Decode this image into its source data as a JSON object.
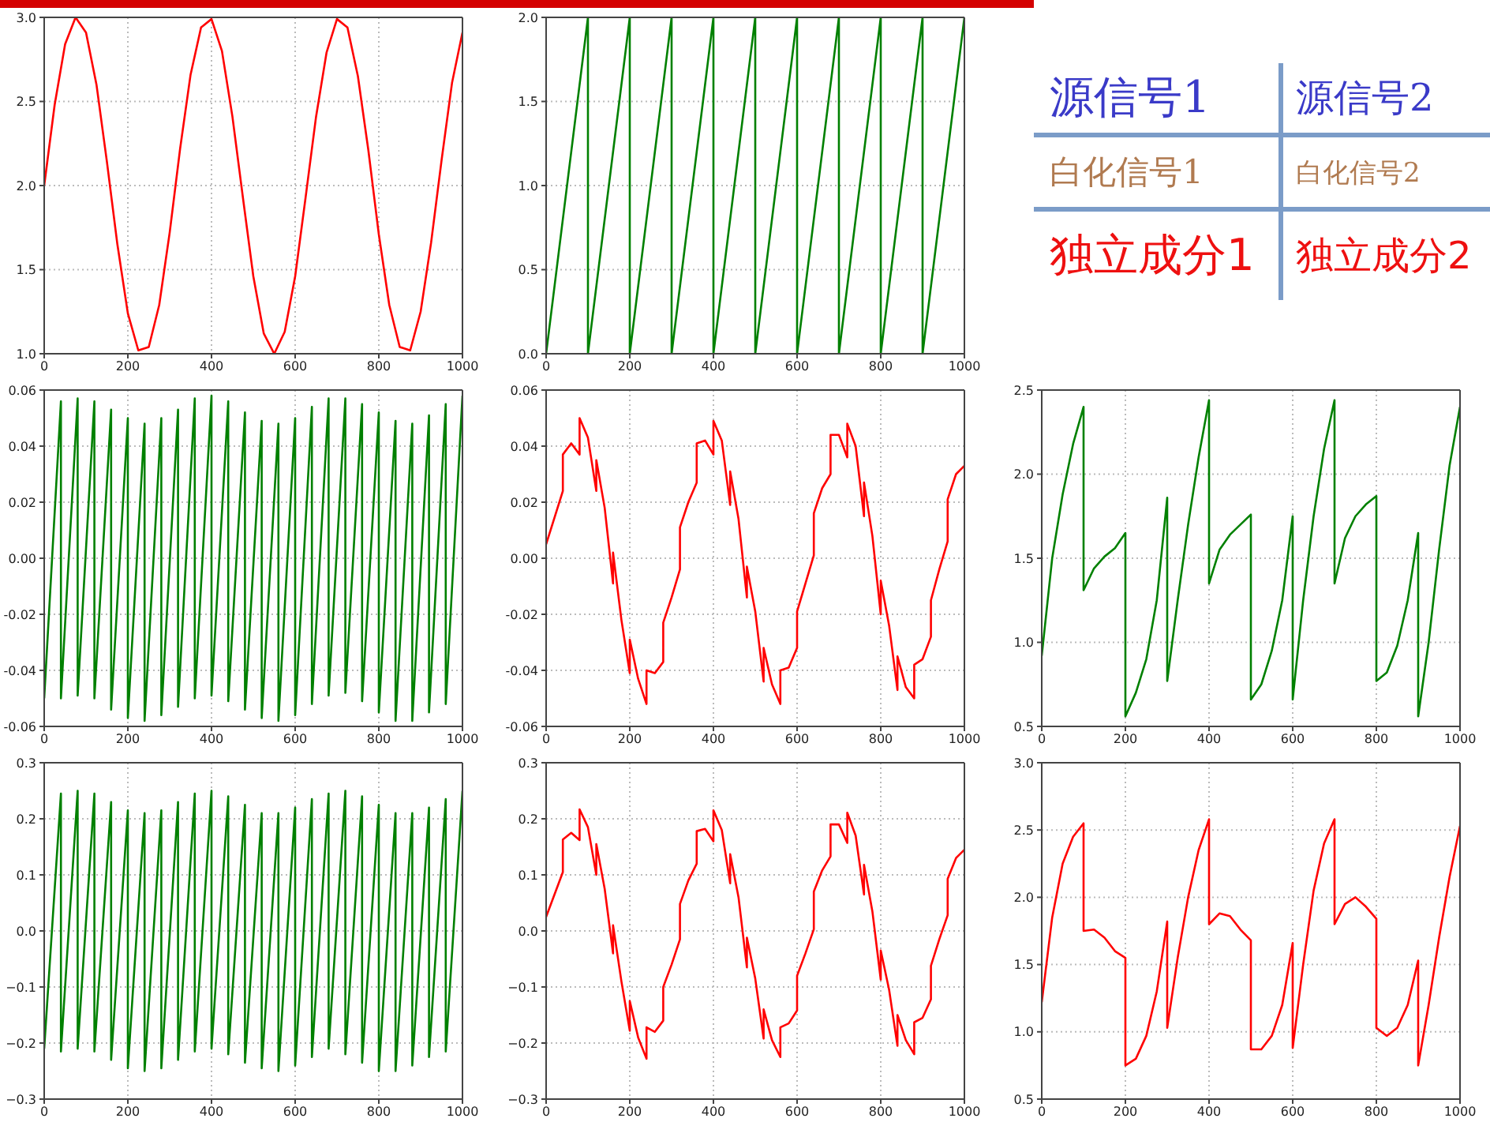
{
  "chart_data": [
    {
      "type": "line",
      "x": [
        0,
        25,
        50,
        75,
        100,
        125,
        150,
        175,
        200,
        225,
        250,
        275,
        300,
        325,
        350,
        375,
        400,
        425,
        450,
        475,
        500,
        525,
        550,
        575,
        600,
        625,
        650,
        675,
        700,
        725,
        750,
        775,
        800,
        825,
        850,
        875,
        900,
        925,
        950,
        975,
        1000
      ],
      "series": [
        {
          "color": "#ff0000",
          "values": [
            2.0,
            2.48,
            2.84,
            3.0,
            2.91,
            2.6,
            2.14,
            1.65,
            1.24,
            1.02,
            1.04,
            1.29,
            1.72,
            2.22,
            2.66,
            2.94,
            2.99,
            2.8,
            2.41,
            1.93,
            1.46,
            1.12,
            1.0,
            1.13,
            1.46,
            1.93,
            2.41,
            2.79,
            2.99,
            2.94,
            2.65,
            2.21,
            1.71,
            1.29,
            1.04,
            1.02,
            1.25,
            1.66,
            2.15,
            2.61,
            2.91
          ]
        }
      ],
      "xlim": [
        0,
        1000
      ],
      "xticks": [
        0,
        200,
        400,
        600,
        800,
        1000
      ],
      "ylim": [
        1,
        3
      ],
      "yticks": [
        {
          "value": 1,
          "label": "1.0"
        },
        {
          "value": 1.5,
          "label": "1.5"
        },
        {
          "value": 2,
          "label": "2.0"
        },
        {
          "value": 2.5,
          "label": "2.5"
        },
        {
          "value": 3,
          "label": "3.0"
        }
      ],
      "grid": true
    },
    {
      "type": "line",
      "x": [
        0,
        100,
        100,
        200,
        200,
        300,
        300,
        400,
        400,
        500,
        500,
        600,
        600,
        700,
        700,
        800,
        800,
        900,
        900,
        1000
      ],
      "series": [
        {
          "color": "#008000",
          "values": [
            0,
            2,
            0,
            2,
            0,
            2,
            0,
            2,
            0,
            2,
            0,
            2,
            0,
            2,
            0,
            2,
            0,
            2,
            0,
            2
          ]
        }
      ],
      "xlim": [
        0,
        1000
      ],
      "xticks": [
        0,
        200,
        400,
        600,
        800,
        1000
      ],
      "ylim": [
        0,
        2
      ],
      "yticks": [
        {
          "value": 0,
          "label": "0.0"
        },
        {
          "value": 0.5,
          "label": "0.5"
        },
        {
          "value": 1,
          "label": "1.0"
        },
        {
          "value": 1.5,
          "label": "1.5"
        },
        {
          "value": 2,
          "label": "2.0"
        }
      ],
      "grid": true
    },
    {
      "type": "other",
      "annotations": [
        "源信号1",
        "源信号2",
        "白化信号1",
        "白化信号2",
        "独立成分1",
        "独立成分2"
      ]
    },
    {
      "type": "line",
      "x": [
        0,
        40,
        40,
        80,
        80,
        120,
        120,
        160,
        160,
        200,
        200,
        240,
        240,
        280,
        280,
        320,
        320,
        360,
        360,
        400,
        400,
        440,
        440,
        480,
        480,
        520,
        520,
        560,
        560,
        600,
        600,
        640,
        640,
        680,
        680,
        720,
        720,
        760,
        760,
        800,
        800,
        840,
        840,
        880,
        880,
        920,
        920,
        960,
        960,
        1000
      ],
      "series": [
        {
          "color": "#008000",
          "values": [
            -0.05,
            0.056,
            -0.05,
            0.057,
            -0.049,
            0.056,
            -0.05,
            0.053,
            -0.054,
            0.05,
            -0.057,
            0.048,
            -0.058,
            0.05,
            -0.056,
            0.053,
            -0.053,
            0.057,
            -0.05,
            0.058,
            -0.049,
            0.056,
            -0.051,
            0.052,
            -0.054,
            0.049,
            -0.057,
            0.048,
            -0.058,
            0.05,
            -0.056,
            0.054,
            -0.052,
            0.057,
            -0.049,
            0.057,
            -0.048,
            0.055,
            -0.051,
            0.052,
            -0.055,
            0.049,
            -0.058,
            0.048,
            -0.058,
            0.051,
            -0.055,
            0.055,
            -0.052,
            0.058
          ]
        }
      ],
      "xlim": [
        0,
        1000
      ],
      "xticks": [
        0,
        200,
        400,
        600,
        800,
        1000
      ],
      "ylim": [
        -0.06,
        0.06
      ],
      "yticks": [
        {
          "value": -0.06,
          "label": "-0.06"
        },
        {
          "value": -0.04,
          "label": "-0.04"
        },
        {
          "value": -0.02,
          "label": "-0.02"
        },
        {
          "value": 0,
          "label": "0.00"
        },
        {
          "value": 0.02,
          "label": "0.02"
        },
        {
          "value": 0.04,
          "label": "0.04"
        },
        {
          "value": 0.06,
          "label": "0.06"
        }
      ],
      "grid": true
    },
    {
      "type": "line",
      "x": [
        0,
        40,
        40,
        60,
        80,
        80,
        100,
        120,
        120,
        140,
        160,
        160,
        180,
        200,
        200,
        220,
        240,
        240,
        260,
        280,
        280,
        300,
        320,
        320,
        340,
        360,
        360,
        380,
        400,
        400,
        420,
        440,
        440,
        460,
        480,
        480,
        500,
        520,
        520,
        540,
        560,
        560,
        580,
        600,
        600,
        620,
        640,
        640,
        660,
        680,
        680,
        700,
        720,
        720,
        740,
        760,
        760,
        780,
        800,
        800,
        820,
        840,
        840,
        860,
        880,
        880,
        900,
        920,
        920,
        940,
        960,
        960,
        980,
        1000
      ],
      "series": [
        {
          "color": "#ff0000",
          "values": [
            0.005,
            0.024,
            0.037,
            0.041,
            0.037,
            0.05,
            0.043,
            0.024,
            0.035,
            0.018,
            -0.009,
            0.002,
            -0.022,
            -0.041,
            -0.029,
            -0.043,
            -0.052,
            -0.04,
            -0.041,
            -0.037,
            -0.023,
            -0.014,
            -0.004,
            0.011,
            0.02,
            0.027,
            0.041,
            0.042,
            0.037,
            0.049,
            0.042,
            0.019,
            0.031,
            0.014,
            -0.014,
            -0.003,
            -0.019,
            -0.044,
            -0.032,
            -0.045,
            -0.052,
            -0.04,
            -0.039,
            -0.032,
            -0.019,
            -0.009,
            0.001,
            0.016,
            0.025,
            0.03,
            0.044,
            0.044,
            0.036,
            0.048,
            0.04,
            0.015,
            0.027,
            0.008,
            -0.02,
            -0.008,
            -0.024,
            -0.047,
            -0.035,
            -0.046,
            -0.05,
            -0.038,
            -0.036,
            -0.028,
            -0.015,
            -0.004,
            0.006,
            0.021,
            0.03,
            0.033
          ]
        }
      ],
      "xlim": [
        0,
        1000
      ],
      "xticks": [
        0,
        200,
        400,
        600,
        800,
        1000
      ],
      "ylim": [
        -0.06,
        0.06
      ],
      "yticks": [
        {
          "value": -0.06,
          "label": "-0.06"
        },
        {
          "value": -0.04,
          "label": "-0.04"
        },
        {
          "value": -0.02,
          "label": "-0.02"
        },
        {
          "value": 0,
          "label": "0.00"
        },
        {
          "value": 0.02,
          "label": "0.02"
        },
        {
          "value": 0.04,
          "label": "0.04"
        },
        {
          "value": 0.06,
          "label": "0.06"
        }
      ],
      "grid": true
    },
    {
      "type": "line",
      "x": [
        0,
        25,
        50,
        75,
        100,
        100,
        125,
        150,
        175,
        200,
        200,
        225,
        250,
        275,
        300,
        300,
        325,
        350,
        375,
        400,
        400,
        425,
        450,
        475,
        500,
        500,
        525,
        550,
        575,
        600,
        600,
        625,
        650,
        675,
        700,
        700,
        725,
        750,
        775,
        800,
        800,
        825,
        850,
        875,
        900,
        900,
        925,
        950,
        975,
        1000
      ],
      "series": [
        {
          "color": "#008000",
          "values": [
            0.92,
            1.5,
            1.88,
            2.18,
            2.4,
            1.31,
            1.44,
            1.51,
            1.56,
            1.65,
            0.56,
            0.7,
            0.9,
            1.25,
            1.86,
            0.77,
            1.25,
            1.7,
            2.1,
            2.44,
            1.35,
            1.55,
            1.64,
            1.7,
            1.76,
            0.66,
            0.75,
            0.95,
            1.25,
            1.75,
            0.66,
            1.25,
            1.75,
            2.15,
            2.44,
            1.35,
            1.62,
            1.75,
            1.82,
            1.87,
            0.77,
            0.82,
            0.98,
            1.25,
            1.65,
            0.56,
            1.0,
            1.55,
            2.05,
            2.4
          ]
        }
      ],
      "xlim": [
        0,
        1000
      ],
      "xticks": [
        0,
        200,
        400,
        600,
        800,
        1000
      ],
      "ylim": [
        0.5,
        2.5
      ],
      "yticks": [
        0.5,
        {
          "value": 1,
          "label": "1.0"
        },
        1.5,
        {
          "value": 2,
          "label": "2.0"
        },
        2.5
      ],
      "grid": true
    },
    {
      "type": "line",
      "x": [
        0,
        40,
        40,
        80,
        80,
        120,
        120,
        160,
        160,
        200,
        200,
        240,
        240,
        280,
        280,
        320,
        320,
        360,
        360,
        400,
        400,
        440,
        440,
        480,
        480,
        520,
        520,
        560,
        560,
        600,
        600,
        640,
        640,
        680,
        680,
        720,
        720,
        760,
        760,
        800,
        800,
        840,
        840,
        880,
        880,
        920,
        920,
        960,
        960,
        1000
      ],
      "series": [
        {
          "color": "#008000",
          "values": [
            -0.21,
            0.245,
            -0.215,
            0.25,
            -0.21,
            0.245,
            -0.215,
            0.23,
            -0.23,
            0.215,
            -0.245,
            0.21,
            -0.25,
            0.215,
            -0.245,
            0.23,
            -0.23,
            0.245,
            -0.215,
            0.25,
            -0.21,
            0.24,
            -0.22,
            0.225,
            -0.235,
            0.21,
            -0.245,
            0.21,
            -0.25,
            0.22,
            -0.24,
            0.235,
            -0.225,
            0.245,
            -0.21,
            0.25,
            -0.22,
            0.24,
            -0.235,
            0.225,
            -0.25,
            0.21,
            -0.25,
            0.21,
            -0.24,
            0.22,
            -0.225,
            0.235,
            -0.215,
            0.25
          ]
        }
      ],
      "xlim": [
        0,
        1000
      ],
      "xticks": [
        0,
        200,
        400,
        600,
        800,
        1000
      ],
      "ylim": [
        -0.3,
        0.3
      ],
      "yticks": [
        {
          "value": -0.3,
          "label": "−0.3"
        },
        {
          "value": -0.2,
          "label": "−0.2"
        },
        {
          "value": -0.1,
          "label": "−0.1"
        },
        {
          "value": 0,
          "label": "0.0"
        },
        0.1,
        0.2,
        0.3
      ],
      "grid": true
    },
    {
      "type": "line",
      "x": [
        0,
        40,
        40,
        60,
        80,
        80,
        100,
        120,
        120,
        140,
        160,
        160,
        180,
        200,
        200,
        220,
        240,
        240,
        260,
        280,
        280,
        300,
        320,
        320,
        340,
        360,
        360,
        380,
        400,
        400,
        420,
        440,
        440,
        460,
        480,
        480,
        500,
        520,
        520,
        540,
        560,
        560,
        580,
        600,
        600,
        620,
        640,
        640,
        660,
        680,
        680,
        700,
        720,
        720,
        740,
        760,
        760,
        780,
        800,
        800,
        820,
        840,
        840,
        860,
        880,
        880,
        900,
        920,
        920,
        940,
        960,
        960,
        980,
        1000
      ],
      "series": [
        {
          "color": "#ff0000",
          "values": [
            0.025,
            0.105,
            0.163,
            0.175,
            0.162,
            0.217,
            0.185,
            0.1,
            0.155,
            0.075,
            -0.04,
            0.01,
            -0.09,
            -0.178,
            -0.125,
            -0.19,
            -0.228,
            -0.172,
            -0.18,
            -0.16,
            -0.1,
            -0.06,
            -0.015,
            0.048,
            0.09,
            0.12,
            0.178,
            0.182,
            0.16,
            0.215,
            0.18,
            0.085,
            0.137,
            0.06,
            -0.065,
            -0.012,
            -0.085,
            -0.192,
            -0.14,
            -0.195,
            -0.225,
            -0.172,
            -0.165,
            -0.142,
            -0.08,
            -0.04,
            0.003,
            0.07,
            0.108,
            0.133,
            0.19,
            0.19,
            0.157,
            0.211,
            0.17,
            0.065,
            0.118,
            0.035,
            -0.087,
            -0.035,
            -0.105,
            -0.205,
            -0.15,
            -0.195,
            -0.22,
            -0.163,
            -0.155,
            -0.122,
            -0.062,
            -0.015,
            0.028,
            0.093,
            0.13,
            0.145
          ]
        }
      ],
      "xlim": [
        0,
        1000
      ],
      "xticks": [
        0,
        200,
        400,
        600,
        800,
        1000
      ],
      "ylim": [
        -0.3,
        0.3
      ],
      "yticks": [
        {
          "value": -0.3,
          "label": "−0.3"
        },
        {
          "value": -0.2,
          "label": "−0.2"
        },
        {
          "value": -0.1,
          "label": "−0.1"
        },
        {
          "value": 0,
          "label": "0.0"
        },
        0.1,
        0.2,
        0.3
      ],
      "grid": true
    },
    {
      "type": "line",
      "x": [
        0,
        25,
        50,
        75,
        100,
        100,
        125,
        150,
        175,
        200,
        200,
        225,
        250,
        275,
        300,
        300,
        325,
        350,
        375,
        400,
        400,
        425,
        450,
        475,
        500,
        500,
        525,
        550,
        575,
        600,
        600,
        625,
        650,
        675,
        700,
        700,
        725,
        750,
        775,
        800,
        800,
        825,
        850,
        875,
        900,
        900,
        925,
        950,
        975,
        1000
      ],
      "series": [
        {
          "color": "#ff0000",
          "values": [
            1.22,
            1.85,
            2.25,
            2.45,
            2.55,
            1.75,
            1.76,
            1.7,
            1.6,
            1.55,
            0.75,
            0.8,
            0.97,
            1.3,
            1.82,
            1.03,
            1.55,
            2.0,
            2.35,
            2.58,
            1.8,
            1.88,
            1.86,
            1.76,
            1.68,
            0.87,
            0.87,
            0.97,
            1.2,
            1.66,
            0.88,
            1.5,
            2.05,
            2.4,
            2.58,
            1.8,
            1.95,
            2.0,
            1.93,
            1.84,
            1.03,
            0.97,
            1.03,
            1.2,
            1.53,
            0.75,
            1.2,
            1.7,
            2.15,
            2.53
          ]
        }
      ],
      "xlim": [
        0,
        1000
      ],
      "xticks": [
        0,
        200,
        400,
        600,
        800,
        1000
      ],
      "ylim": [
        0.5,
        3
      ],
      "yticks": [
        0.5,
        {
          "value": 1,
          "label": "1.0"
        },
        1.5,
        {
          "value": 2,
          "label": "2.0"
        },
        2.5,
        {
          "value": 3,
          "label": "3.0"
        }
      ],
      "grid": true
    }
  ]
}
